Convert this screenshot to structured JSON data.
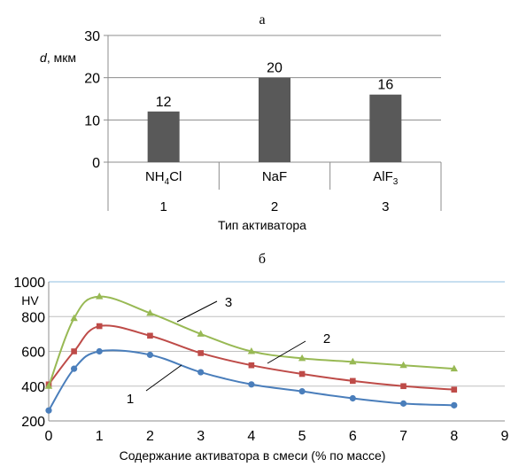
{
  "chart_data": [
    {
      "type": "bar",
      "title": "а",
      "ylabel_italic": "d",
      "ylabel_rest": ", мкм",
      "xlabel": "Тип активатора",
      "ylim": [
        0,
        30
      ],
      "yticks": [
        0,
        10,
        20,
        30
      ],
      "grid": true,
      "categories": [
        {
          "name": "NH",
          "sub": "4",
          "tail": "Cl",
          "num": "1"
        },
        {
          "name": "NaF",
          "sub": "",
          "tail": "",
          "num": "2"
        },
        {
          "name": "AlF",
          "sub": "3",
          "tail": "",
          "num": "3"
        }
      ],
      "values": [
        12,
        20,
        16
      ],
      "bar_color": "#595959"
    },
    {
      "type": "line",
      "title": "б",
      "ylabel": "HV",
      "xlabel": "Содержание активатора в смеси (% по массе)",
      "xlim": [
        0,
        9
      ],
      "ylim": [
        200,
        1000
      ],
      "xticks": [
        0,
        1,
        2,
        3,
        4,
        5,
        6,
        7,
        8,
        9
      ],
      "yticks": [
        200,
        400,
        600,
        800,
        1000
      ],
      "grid": true,
      "x": [
        0,
        0.5,
        1,
        2,
        3,
        4,
        5,
        6,
        7,
        8
      ],
      "series": [
        {
          "name": "1",
          "color": "#4a7ebb",
          "marker": "circle",
          "values": [
            260,
            500,
            600,
            580,
            480,
            410,
            370,
            330,
            300,
            290
          ]
        },
        {
          "name": "2",
          "color": "#be4b48",
          "marker": "square",
          "values": [
            410,
            600,
            745,
            690,
            590,
            520,
            470,
            430,
            400,
            380
          ]
        },
        {
          "name": "3",
          "color": "#98b954",
          "marker": "triangle",
          "values": [
            400,
            790,
            915,
            820,
            700,
            600,
            560,
            540,
            520,
            500
          ]
        }
      ]
    }
  ]
}
